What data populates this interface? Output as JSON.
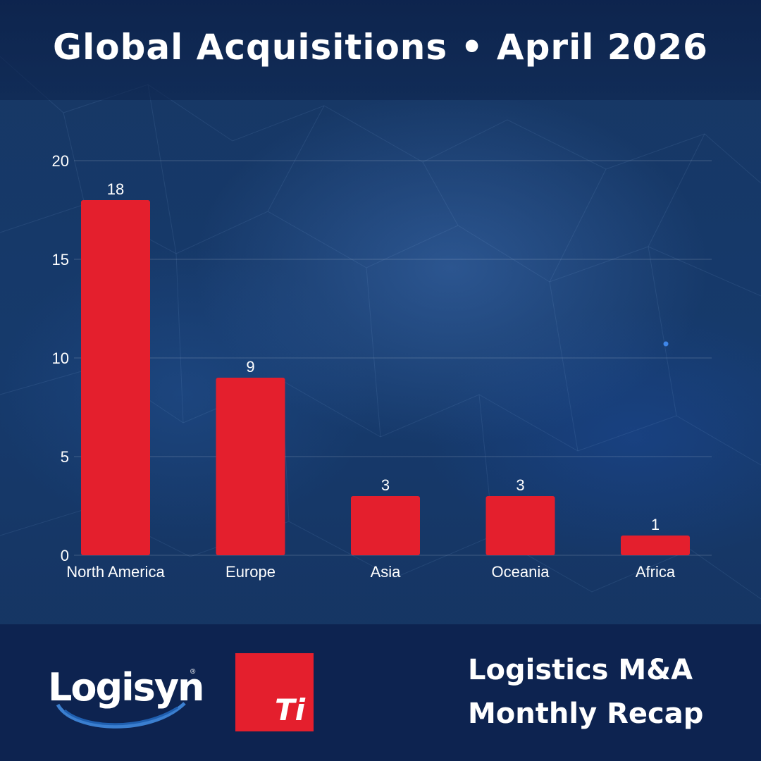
{
  "header": {
    "title": "Global Acquisitions • April 2026"
  },
  "chart_data": {
    "type": "bar",
    "title": "Global Acquisitions • April 2026",
    "xlabel": "",
    "ylabel": "",
    "categories": [
      "North America",
      "Europe",
      "Asia",
      "Oceania",
      "Africa"
    ],
    "values": [
      18,
      9,
      3,
      3,
      1
    ],
    "ylim": [
      0,
      20
    ],
    "yticks": [
      0,
      5,
      10,
      15,
      20
    ],
    "grid": true,
    "legend": "none",
    "data_labels": true,
    "bar_color": "#e41f2d",
    "label_color": "#ffffff"
  },
  "footer": {
    "logo_text": "Logisyn",
    "logo_mark": "®",
    "ti_logo_text": "Ti",
    "recap_line1": "Logistics M&A",
    "recap_line2": "Monthly Recap"
  },
  "colors": {
    "background": "#163a6c",
    "header": "#0d2350",
    "accent": "#e41f2d",
    "text": "#ffffff"
  }
}
